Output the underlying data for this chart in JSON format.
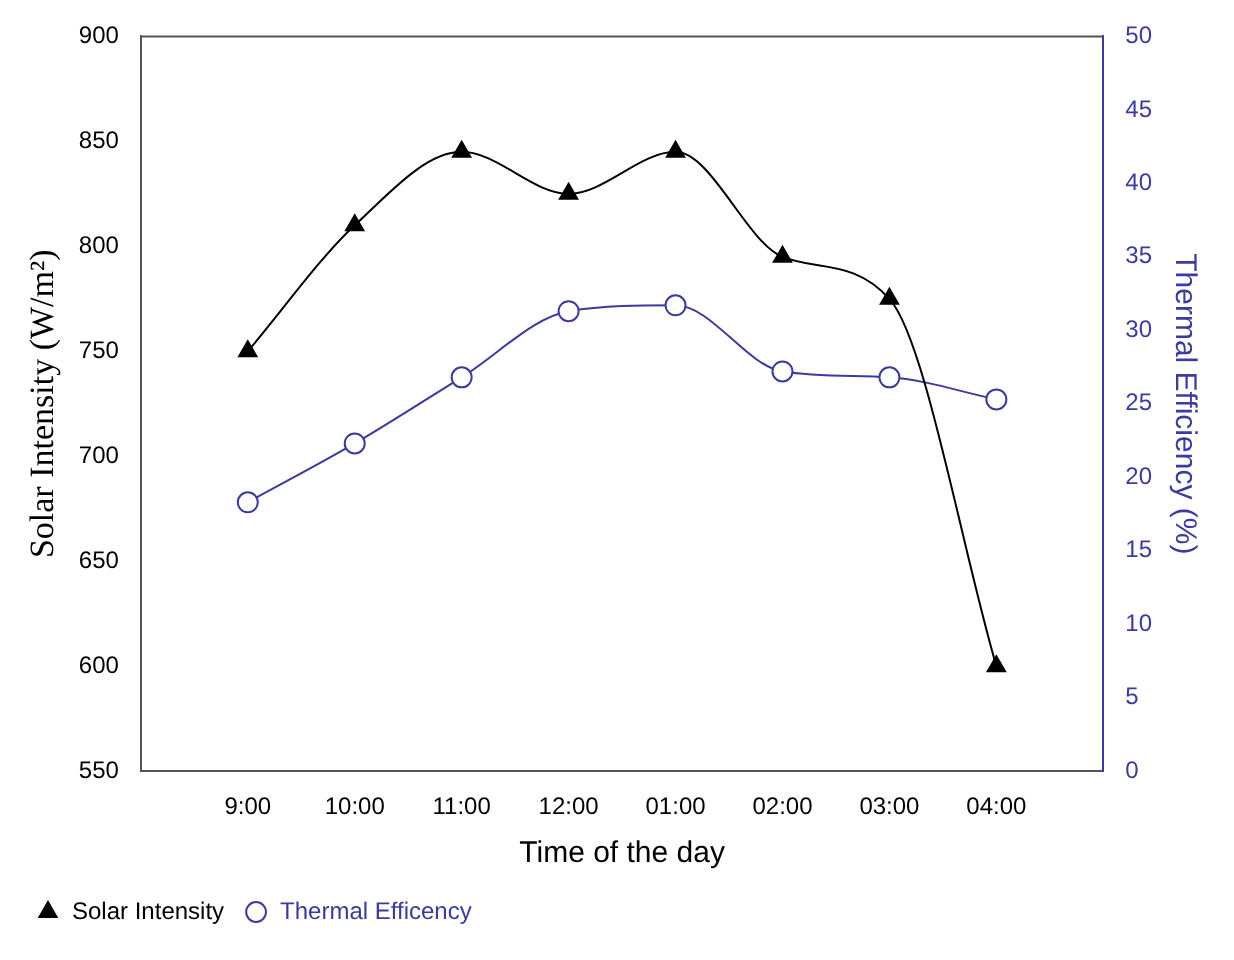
{
  "chart_data": {
    "type": "line",
    "xlabel": "Time of the day",
    "ylabel": "Solar Intensity (W/m²)",
    "y2label": "Thermal Efficiency (%)",
    "categories": [
      "9:00",
      "10:00",
      "11:00",
      "12:00",
      "01:00",
      "02:00",
      "03:00",
      "04:00"
    ],
    "series": [
      {
        "name": "Solar Intensity",
        "color": "#000000",
        "marker": "triangle",
        "values": [
          750,
          810,
          845,
          825,
          845,
          795,
          775,
          600
        ]
      },
      {
        "name": "Thermal Efficency",
        "color": "#3a3aa0",
        "marker": "circle",
        "axis": "y2",
        "values": [
          18.3,
          22.3,
          26.8,
          31.3,
          31.7,
          27.2,
          26.8,
          25.3
        ]
      }
    ],
    "ylim": [
      550,
      900
    ],
    "yticks": [
      550,
      600,
      650,
      700,
      750,
      800,
      850,
      900
    ],
    "y2lim": [
      0,
      50
    ],
    "y2ticks": [
      0,
      5,
      10,
      15,
      20,
      25,
      30,
      35,
      40,
      45,
      50
    ],
    "grid": false,
    "legend": "bottom left"
  }
}
